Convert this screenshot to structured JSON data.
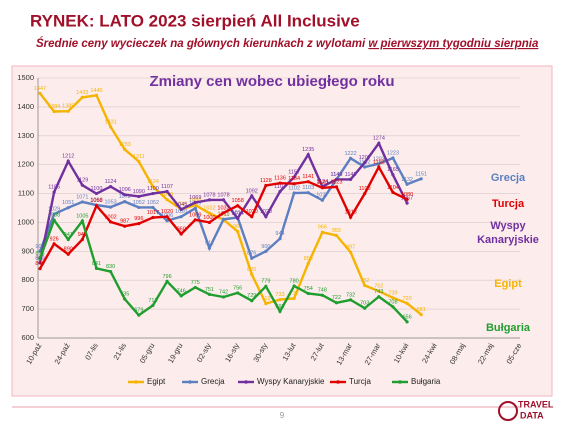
{
  "header": {
    "title": "RYNEK: LATO 2023 sierpień All Inclusive",
    "subtitle": "Średnie ceny wycieczek na głównych kierunkach z wylotami ",
    "subtitle_underlined": "w pierwszym tygodniu sierpnia"
  },
  "page_number": "9",
  "logo": [
    "TRAVEL",
    "DATA"
  ],
  "chart_data": {
    "type": "line",
    "title": "Zmiany cen wobec ubiegłego roku",
    "categories": [
      "10-paź",
      null,
      "24-paź",
      null,
      "07-lis",
      null,
      "21-lis",
      null,
      "05-gru",
      null,
      "19-gru",
      null,
      "02-sty",
      null,
      "16-sty",
      null,
      "30-sty",
      null,
      "13-lut",
      null,
      "27-lut",
      null,
      "13-mar",
      null,
      "27-mar",
      null,
      "10-kwi",
      null,
      "24-kwi",
      null,
      "08-maj",
      null,
      "22-maj",
      null,
      "05-cze"
    ],
    "ylim": [
      600,
      1500
    ],
    "yticks": [
      600,
      700,
      800,
      900,
      1000,
      1100,
      1200,
      1300,
      1400,
      1500
    ],
    "grid": true,
    "series": [
      {
        "name": "Egipt",
        "color": "#f5b400",
        "values": [
          1447,
          1384,
          1385,
          1433,
          1440,
          1331,
          1253,
          1211,
          1124,
          1079,
          1046,
          1060,
          1032,
          1010,
          969,
          820,
          719,
          733,
          737,
          858,
          966,
          955,
          897,
          782,
          762,
          739,
          720,
          681,
          null,
          null,
          null,
          null,
          null,
          null,
          null
        ]
      },
      {
        "name": "Grecja",
        "color": "#5b7fc0",
        "values": [
          900,
          1029,
          1051,
          1071,
          1060,
          1053,
          1072,
          1052,
          1052,
          1006,
          1020,
          1049,
          911,
          1011,
          1017,
          876,
          900,
          944,
          1102,
          1103,
          1077,
          1149,
          1222,
          1192,
          1203,
          1223,
          1132,
          1151,
          null,
          null,
          null,
          null,
          null,
          null,
          null
        ]
      },
      {
        "name": "Wyspy Kanaryjskie",
        "color": "#7030a0",
        "values": [
          860,
          1105,
          1212,
          1129,
          1100,
          1124,
          1096,
          1090,
          1100,
          1107,
          1045,
          1069,
          1078,
          1078,
          1014,
          1092,
          1020,
          1107,
          1157,
          1235,
          1124,
          1149,
          1149,
          1207,
          1274,
          1165,
          1067,
          null,
          null,
          null,
          null,
          null,
          null,
          null,
          null
        ]
      },
      {
        "name": "Turcja",
        "color": "#e00000",
        "values": [
          840,
          926,
          890,
          941,
          1058,
          1002,
          987,
          996,
          1017,
          1020,
          960,
          1009,
          1000,
          1033,
          1058,
          1020,
          1128,
          1136,
          1134,
          1141,
          1120,
          1123,
          1018,
          1100,
          1192,
          1104,
          1080,
          null,
          null,
          null,
          null,
          null,
          null,
          null,
          null
        ]
      },
      {
        "name": "Bułgaria",
        "color": "#1f9e2f",
        "values": [
          875,
          1008,
          941,
          1005,
          841,
          830,
          735,
          679,
          713,
          796,
          746,
          775,
          751,
          742,
          756,
          729,
          779,
          692,
          780,
          754,
          748,
          722,
          732,
          703,
          743,
          708,
          656,
          null,
          null,
          null,
          null,
          null,
          null,
          null,
          null
        ]
      }
    ],
    "annotations": [
      {
        "lines": [
          "Grecja"
        ],
        "color": "#5b7fc0"
      },
      {
        "lines": [
          "Turcja"
        ],
        "color": "#e00000"
      },
      {
        "lines": [
          "Wyspy",
          "Kanaryjskie"
        ],
        "color": "#7030a0"
      },
      {
        "lines": [
          "Egipt"
        ],
        "color": "#f5b400"
      },
      {
        "lines": [
          "Bułgaria"
        ],
        "color": "#1f9e2f"
      }
    ]
  }
}
